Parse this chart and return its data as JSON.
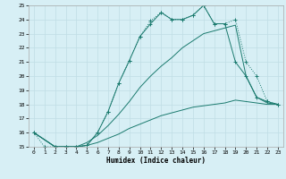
{
  "xlabel": "Humidex (Indice chaleur)",
  "background_color": "#d7eff5",
  "grid_color": "#c0dde5",
  "line_color": "#1a7a6e",
  "xlim": [
    -0.5,
    23.5
  ],
  "ylim": [
    15,
    25
  ],
  "xticks": [
    0,
    1,
    2,
    3,
    4,
    5,
    6,
    7,
    8,
    9,
    10,
    11,
    12,
    13,
    14,
    15,
    16,
    17,
    18,
    19,
    20,
    21,
    22,
    23
  ],
  "yticks": [
    15,
    16,
    17,
    18,
    19,
    20,
    21,
    22,
    23,
    24,
    25
  ],
  "line1_x": [
    0,
    1,
    2,
    3,
    4,
    5,
    6,
    7,
    8,
    9,
    10,
    11,
    12,
    13,
    14,
    15,
    16,
    17,
    18,
    19,
    20,
    21,
    22,
    23
  ],
  "line1_y": [
    16,
    15,
    15,
    15,
    15,
    15.1,
    16.0,
    17.5,
    19.5,
    21.1,
    22.8,
    23.9,
    24.5,
    24.0,
    24.0,
    24.3,
    25.0,
    23.7,
    23.7,
    24.0,
    21.0,
    20.0,
    18.2,
    18.0
  ],
  "line2_x": [
    0,
    2,
    3,
    4,
    5,
    6,
    7,
    8,
    9,
    10,
    11,
    12,
    13,
    14,
    15,
    16,
    17,
    18,
    19,
    20,
    21,
    22,
    23
  ],
  "line2_y": [
    16,
    15,
    15,
    15,
    15.1,
    16.0,
    17.5,
    19.5,
    21.1,
    22.8,
    23.7,
    24.5,
    24.0,
    24.0,
    24.3,
    25.0,
    23.7,
    23.7,
    21.0,
    20.0,
    18.5,
    18.2,
    18.0
  ],
  "line3_x": [
    0,
    2,
    3,
    4,
    5,
    6,
    7,
    8,
    9,
    10,
    11,
    12,
    13,
    14,
    15,
    16,
    17,
    18,
    19,
    20,
    21,
    22,
    23
  ],
  "line3_y": [
    16,
    15,
    15,
    15,
    15.3,
    15.8,
    16.5,
    17.3,
    18.2,
    19.2,
    20.0,
    20.7,
    21.3,
    22.0,
    22.5,
    23.0,
    23.2,
    23.4,
    23.6,
    20.0,
    18.5,
    18.1,
    18.0
  ],
  "line4_x": [
    0,
    2,
    3,
    4,
    5,
    6,
    7,
    8,
    9,
    10,
    11,
    12,
    13,
    14,
    15,
    16,
    17,
    18,
    19,
    20,
    21,
    22,
    23
  ],
  "line4_y": [
    16,
    15,
    15,
    15,
    15.1,
    15.3,
    15.6,
    15.9,
    16.3,
    16.6,
    16.9,
    17.2,
    17.4,
    17.6,
    17.8,
    17.9,
    18.0,
    18.1,
    18.3,
    18.2,
    18.1,
    18.0,
    18.0
  ]
}
